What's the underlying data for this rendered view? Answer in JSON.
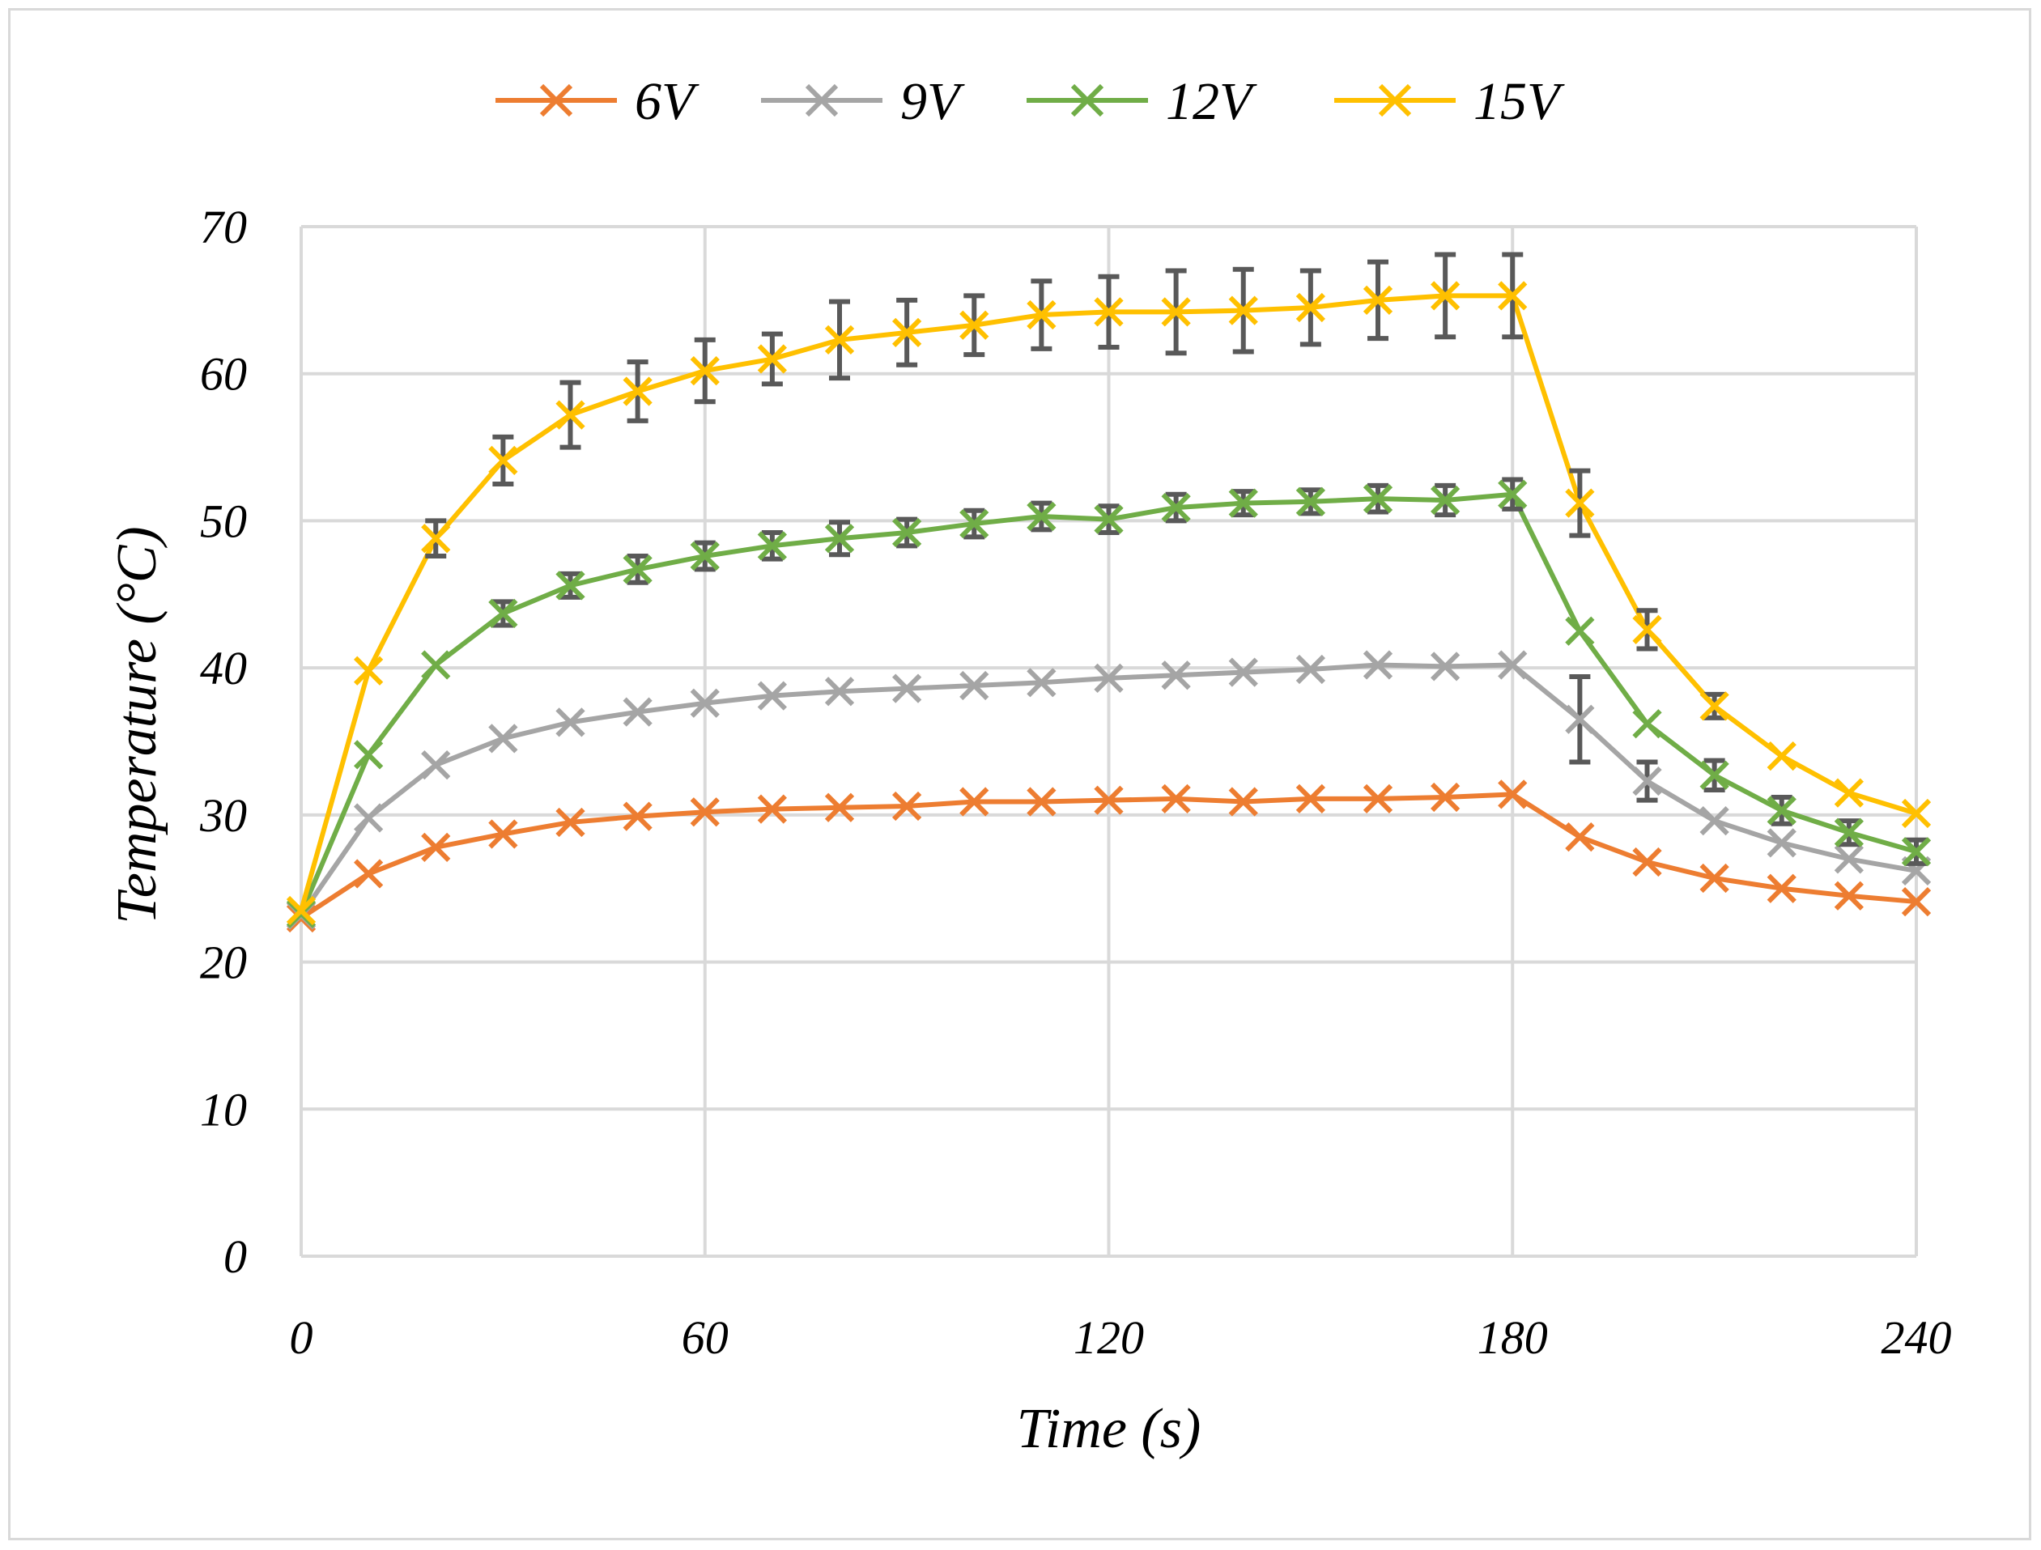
{
  "chart_data": {
    "type": "line",
    "title": "",
    "xlabel": "Time (s)",
    "ylabel": "Temperature (°C)",
    "xlim": [
      0,
      240
    ],
    "ylim": [
      0,
      70
    ],
    "xticks": [
      0,
      60,
      120,
      180,
      240
    ],
    "yticks": [
      0,
      10,
      20,
      30,
      40,
      50,
      60,
      70
    ],
    "grid": true,
    "legend_position": "top-center",
    "marker": "x",
    "x": [
      0,
      10,
      20,
      30,
      40,
      50,
      60,
      70,
      80,
      90,
      100,
      110,
      120,
      130,
      140,
      150,
      160,
      170,
      180,
      190,
      200,
      210,
      220,
      230,
      240
    ],
    "series": [
      {
        "name": "6V",
        "color": "#ED7D31",
        "values": [
          23.0,
          26.0,
          27.8,
          28.7,
          29.5,
          29.9,
          30.2,
          30.4,
          30.5,
          30.6,
          30.9,
          30.9,
          31.0,
          31.1,
          30.9,
          31.1,
          31.1,
          31.2,
          31.4,
          28.5,
          26.8,
          25.7,
          25.0,
          24.5,
          24.1
        ],
        "errors": [
          0,
          0,
          0,
          0,
          0,
          0,
          0,
          0,
          0,
          0,
          0,
          0,
          0,
          0,
          0,
          0,
          0,
          0,
          0,
          0,
          0,
          0,
          0,
          0,
          0
        ]
      },
      {
        "name": "9V",
        "color": "#A5A5A5",
        "values": [
          23.2,
          29.8,
          33.4,
          35.2,
          36.3,
          37.0,
          37.6,
          38.1,
          38.4,
          38.6,
          38.8,
          39.0,
          39.3,
          39.5,
          39.7,
          39.9,
          40.2,
          40.1,
          40.2,
          36.5,
          32.3,
          29.6,
          28.1,
          27.0,
          26.2
        ],
        "errors": [
          0,
          0,
          0,
          0,
          0,
          0,
          0,
          0,
          0,
          0,
          0,
          0,
          0,
          0,
          0,
          0,
          0,
          0,
          0,
          2.9,
          1.3,
          0,
          0,
          0,
          0
        ]
      },
      {
        "name": "12V",
        "color": "#70AD47",
        "values": [
          23.3,
          34.1,
          40.2,
          43.7,
          45.6,
          46.7,
          47.6,
          48.3,
          48.8,
          49.2,
          49.8,
          50.3,
          50.1,
          50.9,
          51.2,
          51.3,
          51.5,
          51.4,
          51.8,
          42.5,
          36.2,
          32.7,
          30.3,
          28.8,
          27.5
        ],
        "errors": [
          0,
          0,
          0,
          0.8,
          0.8,
          0.9,
          0.9,
          0.9,
          1.1,
          0.9,
          0.9,
          0.9,
          0.9,
          0.9,
          0.8,
          0.8,
          0.9,
          1.0,
          1.0,
          0,
          0,
          1.0,
          0.9,
          0.8,
          0.8
        ]
      },
      {
        "name": "15V",
        "color": "#FFC000",
        "values": [
          23.5,
          39.8,
          48.8,
          54.1,
          57.2,
          58.8,
          60.2,
          61.0,
          62.3,
          62.8,
          63.3,
          64.0,
          64.2,
          64.2,
          64.3,
          64.5,
          65.0,
          65.3,
          65.3,
          51.2,
          42.6,
          37.4,
          34.0,
          31.5,
          30.1
        ],
        "errors": [
          0,
          0,
          1.2,
          1.6,
          2.2,
          2.0,
          2.1,
          1.7,
          2.6,
          2.2,
          2.0,
          2.3,
          2.4,
          2.8,
          2.8,
          2.5,
          2.6,
          2.8,
          2.8,
          2.2,
          1.3,
          0.8,
          0,
          0,
          0
        ]
      }
    ]
  }
}
